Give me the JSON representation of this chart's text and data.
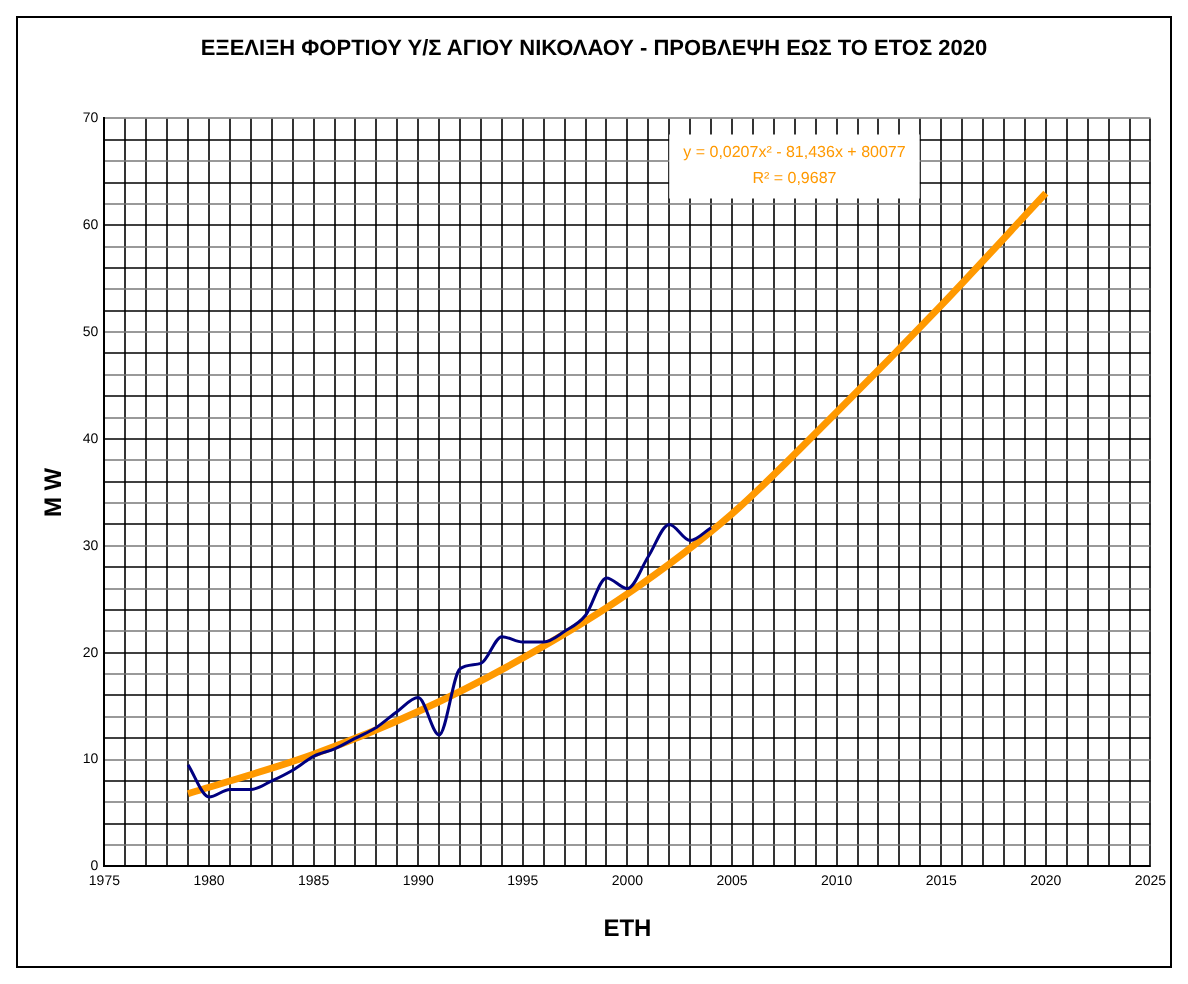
{
  "chart_data": {
    "type": "line",
    "title": "ΕΞΕΛΙΞΗ ΦΟΡΤΙΟΥ Υ/Σ ΑΓΙΟΥ ΝΙΚΟΛΑΟΥ - ΠΡΟΒΛΕΨΗ ΕΩΣ ΤΟ ΕΤΟΣ 2020",
    "xlabel": "ΕΤΗ",
    "ylabel": "M W",
    "series": [
      {
        "color": "#000080",
        "x": [
          1979,
          1980,
          1981,
          1982,
          1983,
          1984,
          1985,
          1986,
          1987,
          1988,
          1989,
          1990,
          1991,
          1992,
          1993,
          1994,
          1995,
          1996,
          1997,
          1998,
          1999,
          2000,
          2001,
          2002,
          2003,
          2004
        ],
        "values": [
          9.5,
          6.5,
          7.2,
          7.2,
          8,
          9,
          10.3,
          11,
          12,
          13,
          14.5,
          15.8,
          12.3,
          18.5,
          19,
          21.5,
          21,
          21,
          22,
          23.5,
          27,
          26,
          29,
          32,
          30.5,
          31.7
        ]
      },
      {
        "color": "#ff9900",
        "x": [
          1979,
          1985,
          1990,
          1995,
          2000,
          2005,
          2010,
          2015,
          2020
        ],
        "values": [
          6.8,
          10.5,
          14.5,
          19.5,
          25.5,
          33,
          42.5,
          52.5,
          63
        ]
      }
    ],
    "xlim": [
      1975,
      2025
    ],
    "xticks": [
      1975,
      {
        "value": 1976,
        "label": null
      },
      {
        "value": 1977,
        "label": null
      },
      {
        "value": 1978,
        "label": null
      },
      {
        "value": 1979,
        "label": null
      },
      1980,
      {
        "value": 1981,
        "label": null
      },
      {
        "value": 1982,
        "label": null
      },
      {
        "value": 1983,
        "label": null
      },
      {
        "value": 1984,
        "label": null
      },
      1985,
      {
        "value": 1986,
        "label": null
      },
      {
        "value": 1987,
        "label": null
      },
      {
        "value": 1988,
        "label": null
      },
      {
        "value": 1989,
        "label": null
      },
      1990,
      {
        "value": 1991,
        "label": null
      },
      {
        "value": 1992,
        "label": null
      },
      {
        "value": 1993,
        "label": null
      },
      {
        "value": 1994,
        "label": null
      },
      1995,
      {
        "value": 1996,
        "label": null
      },
      {
        "value": 1997,
        "label": null
      },
      {
        "value": 1998,
        "label": null
      },
      {
        "value": 1999,
        "label": null
      },
      2000,
      {
        "value": 2001,
        "label": null
      },
      {
        "value": 2002,
        "label": null
      },
      {
        "value": 2003,
        "label": null
      },
      {
        "value": 2004,
        "label": null
      },
      2005,
      {
        "value": 2006,
        "label": null
      },
      {
        "value": 2007,
        "label": null
      },
      {
        "value": 2008,
        "label": null
      },
      {
        "value": 2009,
        "label": null
      },
      2010,
      {
        "value": 2011,
        "label": null
      },
      {
        "value": 2012,
        "label": null
      },
      {
        "value": 2013,
        "label": null
      },
      {
        "value": 2014,
        "label": null
      },
      2015,
      {
        "value": 2016,
        "label": null
      },
      {
        "value": 2017,
        "label": null
      },
      {
        "value": 2018,
        "label": null
      },
      {
        "value": 2019,
        "label": null
      },
      2020,
      {
        "value": 2021,
        "label": null
      },
      {
        "value": 2022,
        "label": null
      },
      {
        "value": 2023,
        "label": null
      },
      {
        "value": 2024,
        "label": null
      },
      2025
    ],
    "ylim": [
      0,
      70
    ],
    "yticks": [
      0,
      {
        "value": 2,
        "label": null
      },
      {
        "value": 4,
        "label": null
      },
      {
        "value": 6,
        "label": null
      },
      {
        "value": 8,
        "label": null
      },
      10,
      {
        "value": 12,
        "label": null
      },
      {
        "value": 14,
        "label": null
      },
      {
        "value": 16,
        "label": null
      },
      {
        "value": 18,
        "label": null
      },
      20,
      {
        "value": 22,
        "label": null
      },
      {
        "value": 24,
        "label": null
      },
      {
        "value": 26,
        "label": null
      },
      {
        "value": 28,
        "label": null
      },
      30,
      {
        "value": 32,
        "label": null
      },
      {
        "value": 34,
        "label": null
      },
      {
        "value": 36,
        "label": null
      },
      {
        "value": 38,
        "label": null
      },
      40,
      {
        "value": 42,
        "label": null
      },
      {
        "value": 44,
        "label": null
      },
      {
        "value": 46,
        "label": null
      },
      {
        "value": 48,
        "label": null
      },
      50,
      {
        "value": 52,
        "label": null
      },
      {
        "value": 54,
        "label": null
      },
      {
        "value": 56,
        "label": null
      },
      {
        "value": 58,
        "label": null
      },
      60,
      {
        "value": 62,
        "label": null
      },
      {
        "value": 64,
        "label": null
      },
      {
        "value": 66,
        "label": null
      },
      {
        "value": 68,
        "label": null
      },
      70
    ],
    "grid": true,
    "marker": "none",
    "line_style": "solid",
    "annotations": [
      "y = 0,0207x² - 81,436x + 80077",
      "R² = 0,9687"
    ]
  }
}
